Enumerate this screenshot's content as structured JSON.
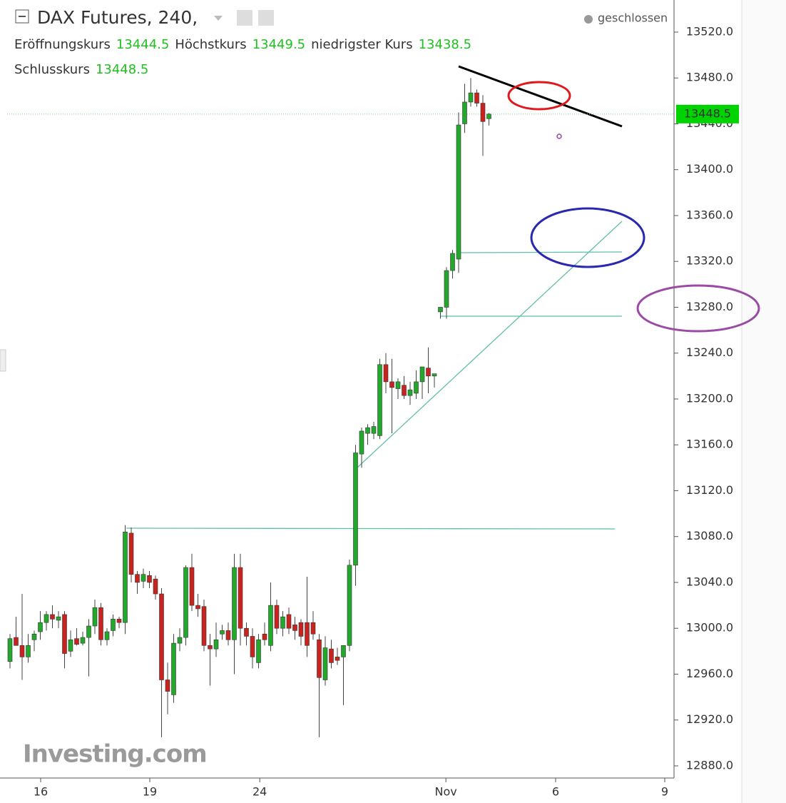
{
  "chart_data": {
    "type": "candlestick",
    "title": "DAX Futures, 240,",
    "status": "geschlossen",
    "labels": {
      "open": "Eröffnungskurs",
      "high": "Höchstkurs",
      "low": "niedrigster Kurs",
      "close": "Schlusskurs"
    },
    "watermark": "Investing.com",
    "up_color": "#22a82a",
    "down_color": "#c8231f",
    "value_color": "#20c020",
    "price_label_color": "#00d400",
    "open": [
      12971,
      12992,
      12985,
      12975,
      12990,
      12997,
      13005,
      13012,
      13007,
      13012,
      12980,
      12991,
      12987,
      12992,
      13002,
      13018,
      12990,
      12998,
      13008,
      13005,
      13083,
      13047,
      13041,
      13046,
      13043,
      13030,
      12955,
      12942,
      12987,
      12992,
      13053,
      13020,
      13019,
      12985,
      12982,
      12995,
      12998,
      12990,
      13053,
      13000,
      12993,
      12970,
      12995,
      12985,
      13020,
      13000,
      13012,
      13003,
      13005,
      13005,
      13005,
      12990,
      12955,
      12982,
      12975,
      12975,
      12985,
      13055,
      13152,
      13170,
      13170,
      13168,
      13230,
      13215,
      13209,
      13212,
      13203,
      13205,
      13215,
      13227,
      13220,
      13276,
      13280,
      13312,
      13322,
      13440,
      13459,
      13467,
      13458,
      13444.5
    ],
    "high": [
      12995,
      13010,
      13030,
      12995,
      12998,
      13015,
      13015,
      13020,
      13015,
      13015,
      12998,
      13000,
      12997,
      13008,
      13025,
      13022,
      13000,
      13012,
      13010,
      13090,
      13088,
      13050,
      13052,
      13050,
      13046,
      13035,
      12970,
      12995,
      13000,
      13055,
      13065,
      13030,
      13025,
      12995,
      13005,
      13003,
      13005,
      13065,
      13065,
      13005,
      13000,
      12995,
      13005,
      13040,
      13025,
      13015,
      13018,
      13010,
      13008,
      13045,
      13015,
      12995,
      12993,
      12990,
      12983,
      12985,
      13060,
      13160,
      13175,
      13178,
      13180,
      13235,
      13240,
      13235,
      13218,
      13220,
      13215,
      13225,
      13228,
      13245,
      13222,
      13280,
      13315,
      13330,
      13450,
      13475,
      13480,
      13470,
      13465,
      13449.5
    ],
    "low": [
      12965,
      12985,
      12955,
      12970,
      12980,
      12990,
      12998,
      13000,
      13000,
      12965,
      12975,
      12985,
      12985,
      12958,
      12995,
      12985,
      12985,
      12993,
      13000,
      12995,
      13040,
      13030,
      13035,
      13035,
      13025,
      12905,
      12925,
      12935,
      12980,
      12985,
      13015,
      13010,
      12980,
      12950,
      12975,
      12990,
      12985,
      12960,
      12985,
      12985,
      12965,
      12965,
      12985,
      12980,
      12995,
      12993,
      12995,
      12990,
      12985,
      12975,
      12990,
      12905,
      12950,
      12965,
      12968,
      12933,
      12980,
      13037,
      13140,
      13160,
      13165,
      13165,
      13205,
      13170,
      13200,
      13200,
      13195,
      13200,
      13200,
      13205,
      13210,
      13270,
      13270,
      13305,
      13310,
      13432,
      13455,
      13455,
      13412,
      13438.5
    ],
    "close": [
      12991,
      12985,
      12975,
      12985,
      12995,
      13005,
      13012,
      13008,
      13010,
      12978,
      12990,
      12986,
      12992,
      13002,
      13018,
      12990,
      12997,
      13008,
      13005,
      13084,
      13047,
      13040,
      13047,
      13040,
      13030,
      12955,
      12945,
      12987,
      12992,
      13053,
      13020,
      13017,
      12985,
      12982,
      12990,
      12998,
      12990,
      13053,
      13000,
      12993,
      12975,
      12990,
      12990,
      13020,
      13000,
      13010,
      13000,
      12998,
      12993,
      12985,
      12995,
      12957,
      12983,
      12970,
      12972,
      12985,
      13055,
      13153,
      13172,
      13175,
      13176,
      13230,
      13215,
      13210,
      13215,
      13203,
      13208,
      13215,
      13228,
      13220,
      13222,
      13280,
      13312,
      13327,
      13439,
      13459,
      13467,
      13458,
      13442,
      13448.5
    ],
    "ylim": [
      12869.4,
      13548
    ],
    "yticks": [
      {
        "value": 12880,
        "label": "12880.0"
      },
      {
        "value": 12920,
        "label": "12920.0"
      },
      {
        "value": 12960,
        "label": "12960.0"
      },
      {
        "value": 13000,
        "label": "13000.0"
      },
      {
        "value": 13040,
        "label": "13040.0"
      },
      {
        "value": 13080,
        "label": "13080.0"
      },
      {
        "value": 13120,
        "label": "13120.0"
      },
      {
        "value": 13160,
        "label": "13160.0"
      },
      {
        "value": 13200,
        "label": "13200.0"
      },
      {
        "value": 13240,
        "label": "13240.0"
      },
      {
        "value": 13280,
        "label": "13280.0"
      },
      {
        "value": 13320,
        "label": "13320.0"
      },
      {
        "value": 13360,
        "label": "13360.0"
      },
      {
        "value": 13400,
        "label": "13400.0"
      },
      {
        "value": 13440,
        "label": "13440.0"
      },
      {
        "value": 13480,
        "label": "13480.0"
      },
      {
        "value": 13520,
        "label": "13520.0"
      }
    ],
    "xlim": [
      -0.47,
      109.53
    ],
    "xticks": [
      {
        "value": 5.06,
        "label": "16"
      },
      {
        "value": 23.06,
        "label": "19"
      },
      {
        "value": 41.2,
        "label": "24"
      },
      {
        "value": 71.9,
        "label": "Nov"
      },
      {
        "value": 90,
        "label": "6"
      },
      {
        "value": 108,
        "label": "9"
      }
    ]
  }
}
